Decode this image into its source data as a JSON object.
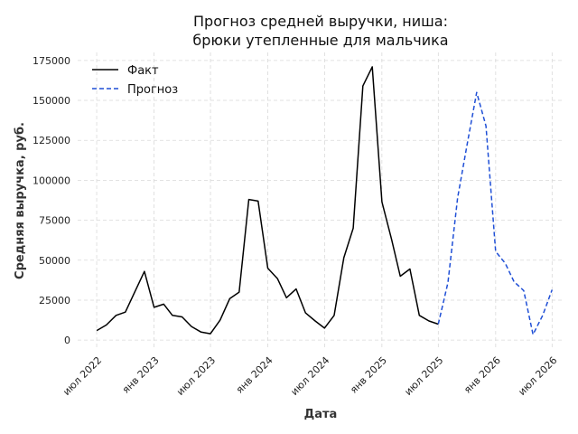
{
  "chart_data": {
    "type": "line",
    "title": [
      "Прогноз средней выручки, ниша:",
      "брюки утепленные для мальчика"
    ],
    "xlabel": "Дата",
    "ylabel": "Средняя выручка, руб.",
    "x_ticks": [
      {
        "date": "2022-07-01",
        "label": "июл 2022"
      },
      {
        "date": "2023-01-01",
        "label": "янв 2023"
      },
      {
        "date": "2023-07-01",
        "label": "июл 2023"
      },
      {
        "date": "2024-01-01",
        "label": "янв 2024"
      },
      {
        "date": "2024-07-01",
        "label": "июл 2024"
      },
      {
        "date": "2025-01-01",
        "label": "янв 2025"
      },
      {
        "date": "2025-07-01",
        "label": "июл 2025"
      },
      {
        "date": "2026-01-01",
        "label": "янв 2026"
      },
      {
        "date": "2026-07-01",
        "label": "июл 2026"
      }
    ],
    "y_ticks": [
      0,
      25000,
      50000,
      75000,
      100000,
      125000,
      150000,
      175000
    ],
    "y_tick_labels": [
      "0",
      "25000",
      "50000",
      "75000",
      "100000",
      "125000",
      "150000",
      "175000"
    ],
    "ylim": [
      -5000,
      180000
    ],
    "xlim": [
      "2022-05-01",
      "2026-08-01"
    ],
    "grid": true,
    "legend": "top-left",
    "series": [
      {
        "name": "Факт",
        "color": "#000000",
        "style": "solid",
        "x": [
          "2022-07-01",
          "2022-08-01",
          "2022-09-01",
          "2022-10-01",
          "2022-11-01",
          "2022-12-01",
          "2023-01-01",
          "2023-02-01",
          "2023-03-01",
          "2023-04-01",
          "2023-05-01",
          "2023-06-01",
          "2023-07-01",
          "2023-08-01",
          "2023-09-01",
          "2023-10-01",
          "2023-11-01",
          "2023-12-01",
          "2024-01-01",
          "2024-02-01",
          "2024-03-01",
          "2024-04-01",
          "2024-05-01",
          "2024-06-01",
          "2024-07-01",
          "2024-08-01",
          "2024-09-01",
          "2024-10-01",
          "2024-11-01",
          "2024-12-01",
          "2025-01-01",
          "2025-02-01",
          "2025-03-01",
          "2025-04-01",
          "2025-05-01",
          "2025-06-01",
          "2025-07-01"
        ],
        "values": [
          6000,
          9500,
          15500,
          17500,
          30500,
          43000,
          20500,
          22500,
          15500,
          14500,
          8500,
          5000,
          4000,
          12500,
          26000,
          30000,
          88000,
          87000,
          45000,
          38500,
          26500,
          32000,
          17000,
          12000,
          7500,
          15500,
          51500,
          70000,
          159000,
          171000,
          86500,
          63000,
          40000,
          44500,
          15500,
          12000,
          10000
        ]
      },
      {
        "name": "Прогноз",
        "color": "#1f4fd6",
        "style": "dashed",
        "x": [
          "2025-07-01",
          "2025-08-01",
          "2025-09-01",
          "2025-10-01",
          "2025-11-01",
          "2025-12-01",
          "2026-01-01",
          "2026-02-01",
          "2026-03-01",
          "2026-04-01",
          "2026-05-01",
          "2026-06-01",
          "2026-07-01"
        ],
        "values": [
          10000,
          36000,
          89000,
          122000,
          155000,
          134000,
          55500,
          48000,
          36500,
          31000,
          3500,
          15500,
          31500
        ]
      }
    ]
  }
}
